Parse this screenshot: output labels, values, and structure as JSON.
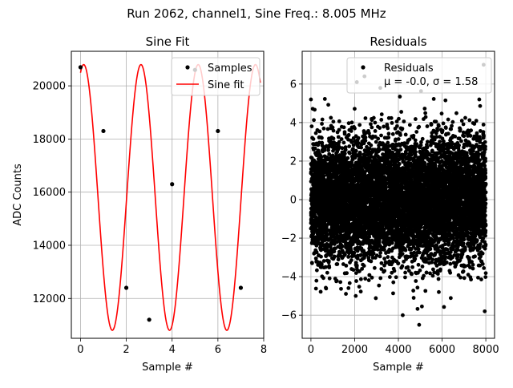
{
  "suptitle": "Run 2062, channel1, Sine Freq.: 8.005 MHz",
  "chart_data": [
    {
      "type": "line",
      "title": "Sine Fit",
      "xlabel": "Sample #",
      "ylabel": "ADC Counts",
      "xlim": [
        -0.4,
        8.0
      ],
      "ylim": [
        10500,
        21300
      ],
      "xticks": [
        0,
        2,
        4,
        6,
        8
      ],
      "yticks": [
        12000,
        14000,
        16000,
        18000,
        20000
      ],
      "grid": true,
      "legend_position": "top-right",
      "series": [
        {
          "name": "Samples",
          "kind": "scatter",
          "color": "#000000",
          "x": [
            0,
            1,
            2,
            3,
            4,
            5,
            6,
            7
          ],
          "y": [
            20700,
            18300,
            12400,
            11200,
            16300,
            20600,
            18300,
            12400
          ]
        },
        {
          "name": "Sine fit",
          "kind": "line",
          "color": "#ff0000",
          "model": {
            "offset": 15800,
            "amplitude": 5000,
            "cycles_per_sample": 0.4,
            "phase_sample": 0.14
          },
          "x_range": [
            0,
            7.85
          ]
        }
      ]
    },
    {
      "type": "scatter",
      "title": "Residuals",
      "xlabel": "Sample #",
      "ylabel": "",
      "xlim": [
        -400,
        8400
      ],
      "ylim": [
        -7.2,
        7.7
      ],
      "xticks": [
        0,
        2000,
        4000,
        6000,
        8000
      ],
      "yticks": [
        -6,
        -4,
        -2,
        0,
        2,
        4,
        6
      ],
      "grid": true,
      "legend_position": "top-right",
      "series": [
        {
          "name": "Residuals",
          "legend_stats": "μ = -0.0, σ = 1.58",
          "color": "#000000",
          "n_points": 8000,
          "mean": 0.0,
          "std": 1.58,
          "outliers": [
            {
              "x": 0,
              "y": 5.2
            },
            {
              "x": 2100,
              "y": 6.1
            },
            {
              "x": 2450,
              "y": 6.4
            },
            {
              "x": 7900,
              "y": 7.0
            },
            {
              "x": 7700,
              "y": 5.2
            },
            {
              "x": 2050,
              "y": -5.0
            },
            {
              "x": 4200,
              "y": -6.0
            },
            {
              "x": 4950,
              "y": -6.5
            },
            {
              "x": 5850,
              "y": -4.8
            },
            {
              "x": 4700,
              "y": -5.1
            }
          ]
        }
      ]
    }
  ]
}
